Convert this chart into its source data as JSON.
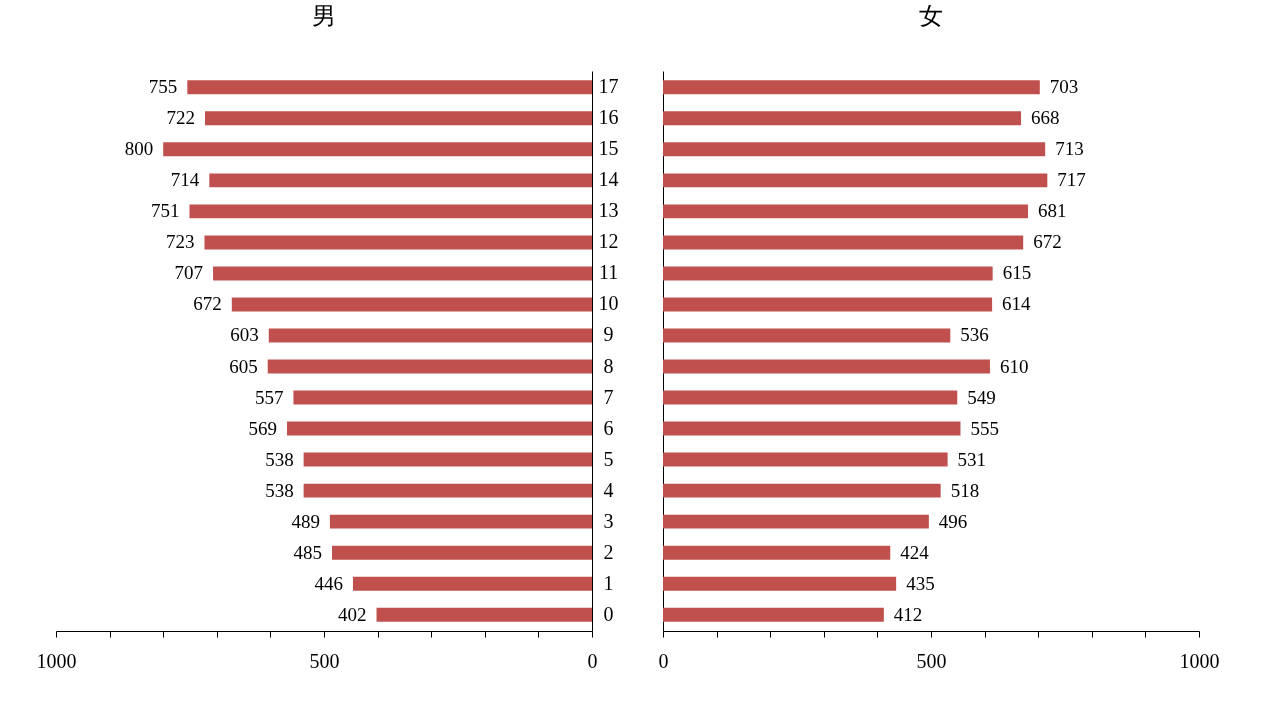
{
  "chart_data": [
    {
      "type": "bar",
      "orientation": "horizontal",
      "title": "男",
      "categories": [
        "17",
        "16",
        "15",
        "14",
        "13",
        "12",
        "11",
        "10",
        "9",
        "8",
        "7",
        "6",
        "5",
        "4",
        "3",
        "2",
        "1",
        "0"
      ],
      "values": [
        755,
        722,
        800,
        714,
        751,
        723,
        707,
        672,
        603,
        605,
        557,
        569,
        538,
        538,
        489,
        485,
        446,
        402
      ],
      "color": "#c0504d",
      "xlim": [
        1000,
        0
      ],
      "xticks": [
        0,
        {
          "value": 100,
          "label": null
        },
        {
          "value": 200,
          "label": null
        },
        {
          "value": 300,
          "label": null
        },
        {
          "value": 400,
          "label": null
        },
        500,
        {
          "value": 600,
          "label": null
        },
        {
          "value": 700,
          "label": null
        },
        {
          "value": 800,
          "label": null
        },
        {
          "value": 900,
          "label": null
        },
        1000
      ],
      "data_labels": true,
      "grid": false
    },
    {
      "type": "bar",
      "orientation": "horizontal",
      "title": "女",
      "categories": [
        "17",
        "16",
        "15",
        "14",
        "13",
        "12",
        "11",
        "10",
        "9",
        "8",
        "7",
        "6",
        "5",
        "4",
        "3",
        "2",
        "1",
        "0"
      ],
      "values": [
        703,
        668,
        713,
        717,
        681,
        672,
        615,
        614,
        536,
        610,
        549,
        555,
        531,
        518,
        496,
        424,
        435,
        412
      ],
      "color": "#c0504d",
      "xlim": [
        0,
        1000
      ],
      "xticks": [
        0,
        {
          "value": 100,
          "label": null
        },
        {
          "value": 200,
          "label": null
        },
        {
          "value": 300,
          "label": null
        },
        {
          "value": 400,
          "label": null
        },
        500,
        {
          "value": 600,
          "label": null
        },
        {
          "value": 700,
          "label": null
        },
        {
          "value": 800,
          "label": null
        },
        {
          "value": 900,
          "label": null
        },
        1000
      ],
      "data_labels": true,
      "grid": false,
      "tick_labels": "x"
    }
  ]
}
